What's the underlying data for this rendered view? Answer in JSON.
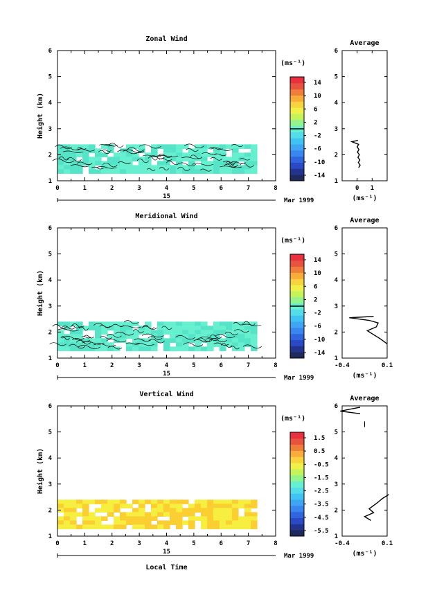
{
  "chart_data": [
    {
      "type": "heatmap",
      "title": "Zonal Wind",
      "xlabel": "",
      "ylabel": "Height (km)",
      "xlim": [
        0,
        8
      ],
      "ylim": [
        1,
        6
      ],
      "x_ticks": [
        "0",
        "1",
        "2",
        "3",
        "4",
        "5",
        "6",
        "7",
        "8"
      ],
      "y_ticks": [
        "1",
        "2",
        "3",
        "4",
        "5",
        "6"
      ],
      "date_day": "15",
      "date_month": "Mar 1999",
      "data_extent": {
        "x": [
          0,
          7.2
        ],
        "y": [
          1.4,
          2.4
        ]
      },
      "dominant_color": "#66f0d0",
      "secondary_color": "#55e4c8",
      "colorbar": {
        "unit": "(ms⁻¹)",
        "colors": [
          "#1e2a5a",
          "#23348e",
          "#2a49c4",
          "#2f66e0",
          "#3a86f0",
          "#3fa5f3",
          "#3fc3f2",
          "#54dcea",
          "#66f0d0",
          "#92f48c",
          "#c4f45a",
          "#f0f04a",
          "#f8d33e",
          "#f8ac3a",
          "#f07e3a",
          "#e8523e",
          "#e8303e"
        ],
        "labels": [
          "14",
          "10",
          "6",
          "2",
          "-2",
          "-6",
          "-10",
          "-14"
        ],
        "break_value": 0
      },
      "profile": {
        "title": "Average",
        "xlabel": "(ms⁻¹)",
        "xlim": [
          -1,
          2
        ],
        "x_ticks": [
          "0",
          "1"
        ],
        "x_tick_values": [
          0,
          1
        ],
        "ylim": [
          1,
          6
        ],
        "y_ticks": [
          "1",
          "2",
          "3",
          "4",
          "5",
          "6"
        ],
        "points": [
          [
            0.05,
            2.55
          ],
          [
            -0.35,
            2.5
          ],
          [
            0.1,
            2.4
          ],
          [
            0.0,
            2.3
          ],
          [
            0.12,
            2.2
          ],
          [
            0.02,
            2.1
          ],
          [
            0.15,
            2.0
          ],
          [
            0.05,
            1.9
          ],
          [
            0.18,
            1.8
          ],
          [
            0.08,
            1.7
          ],
          [
            0.2,
            1.6
          ],
          [
            0.1,
            1.5
          ]
        ]
      }
    },
    {
      "type": "heatmap",
      "title": "Meridional Wind",
      "xlabel": "",
      "ylabel": "Height (km)",
      "xlim": [
        0,
        8
      ],
      "ylim": [
        1,
        6
      ],
      "x_ticks": [
        "0",
        "1",
        "2",
        "3",
        "4",
        "5",
        "6",
        "7",
        "8"
      ],
      "y_ticks": [
        "1",
        "2",
        "3",
        "4",
        "5",
        "6"
      ],
      "date_day": "15",
      "date_month": "Mar 1999",
      "data_extent": {
        "x": [
          0,
          7.2
        ],
        "y": [
          1.4,
          2.4
        ]
      },
      "dominant_color": "#66f0d0",
      "secondary_color": "#55e4c8",
      "colorbar": {
        "unit": "(ms⁻¹)",
        "colors": [
          "#1e2a5a",
          "#23348e",
          "#2a49c4",
          "#2f66e0",
          "#3a86f0",
          "#3fa5f3",
          "#3fc3f2",
          "#54dcea",
          "#66f0d0",
          "#92f48c",
          "#c4f45a",
          "#f0f04a",
          "#f8d33e",
          "#f8ac3a",
          "#f07e3a",
          "#e8523e",
          "#e8303e"
        ],
        "labels": [
          "14",
          "10",
          "6",
          "2",
          "-2",
          "-6",
          "-10",
          "-14"
        ],
        "break_value": 0
      },
      "profile": {
        "title": "Average",
        "xlabel": "(ms⁻¹)",
        "xlim": [
          -0.4,
          0.1
        ],
        "x_ticks": [
          "-0.4",
          "0.1"
        ],
        "x_tick_values": [
          -0.4,
          0.1
        ],
        "ylim": [
          1,
          6
        ],
        "y_ticks": [
          "1",
          "2",
          "3",
          "4",
          "5",
          "6"
        ],
        "points": [
          [
            -0.05,
            2.6
          ],
          [
            -0.32,
            2.55
          ],
          [
            -0.1,
            2.45
          ],
          [
            0.0,
            2.35
          ],
          [
            -0.02,
            2.2
          ],
          [
            -0.12,
            2.05
          ],
          [
            -0.05,
            1.9
          ],
          [
            0.02,
            1.75
          ],
          [
            0.1,
            1.55
          ]
        ]
      }
    },
    {
      "type": "heatmap",
      "title": "Vertical Wind",
      "xlabel": "Local Time",
      "ylabel": "Height (km)",
      "xlim": [
        0,
        8
      ],
      "ylim": [
        1,
        6
      ],
      "x_ticks": [
        "0",
        "1",
        "2",
        "3",
        "4",
        "5",
        "6",
        "7",
        "8"
      ],
      "y_ticks": [
        "1",
        "2",
        "3",
        "4",
        "5",
        "6"
      ],
      "date_day": "15",
      "date_month": "Mar 1999",
      "data_extent": {
        "x": [
          0,
          7.2
        ],
        "y": [
          1.3,
          2.4
        ]
      },
      "dominant_color": "#fbcf32",
      "secondary_color": "#f6ef40",
      "colorbar": {
        "unit": "(ms⁻¹)",
        "colors": [
          "#1e2a5a",
          "#23348e",
          "#2a49c4",
          "#2f66e0",
          "#3a86f0",
          "#3fa5f3",
          "#3fc3f2",
          "#54dcea",
          "#66f0d0",
          "#92f48c",
          "#c4f45a",
          "#f0f04a",
          "#f8d33e",
          "#f8ac3a",
          "#f07e3a",
          "#e8523e",
          "#e8303e"
        ],
        "labels": [
          "1.5",
          "0.5",
          "-0.5",
          "-1.5",
          "-2.5",
          "-3.5",
          "-4.5",
          "-5.5"
        ],
        "break_value": null
      },
      "profile": {
        "title": "Average",
        "xlabel": "(ms⁻¹)",
        "xlim": [
          -0.4,
          0.1
        ],
        "x_ticks": [
          "-0.4",
          "0.1"
        ],
        "x_tick_values": [
          -0.4,
          0.1
        ],
        "ylim": [
          1,
          6
        ],
        "y_ticks": [
          "1",
          "2",
          "3",
          "4",
          "5",
          "6"
        ],
        "points": [
          [
            -0.2,
            5.95
          ],
          [
            -0.42,
            5.8
          ],
          [
            -0.2,
            5.7
          ]
        ],
        "points2": [
          [
            0.12,
            2.6
          ],
          [
            0.05,
            2.45
          ],
          [
            -0.02,
            2.25
          ],
          [
            -0.1,
            2.05
          ],
          [
            -0.05,
            1.9
          ],
          [
            -0.15,
            1.75
          ],
          [
            -0.08,
            1.6
          ]
        ],
        "mark": [
          -0.15,
          5.3
        ]
      }
    }
  ]
}
